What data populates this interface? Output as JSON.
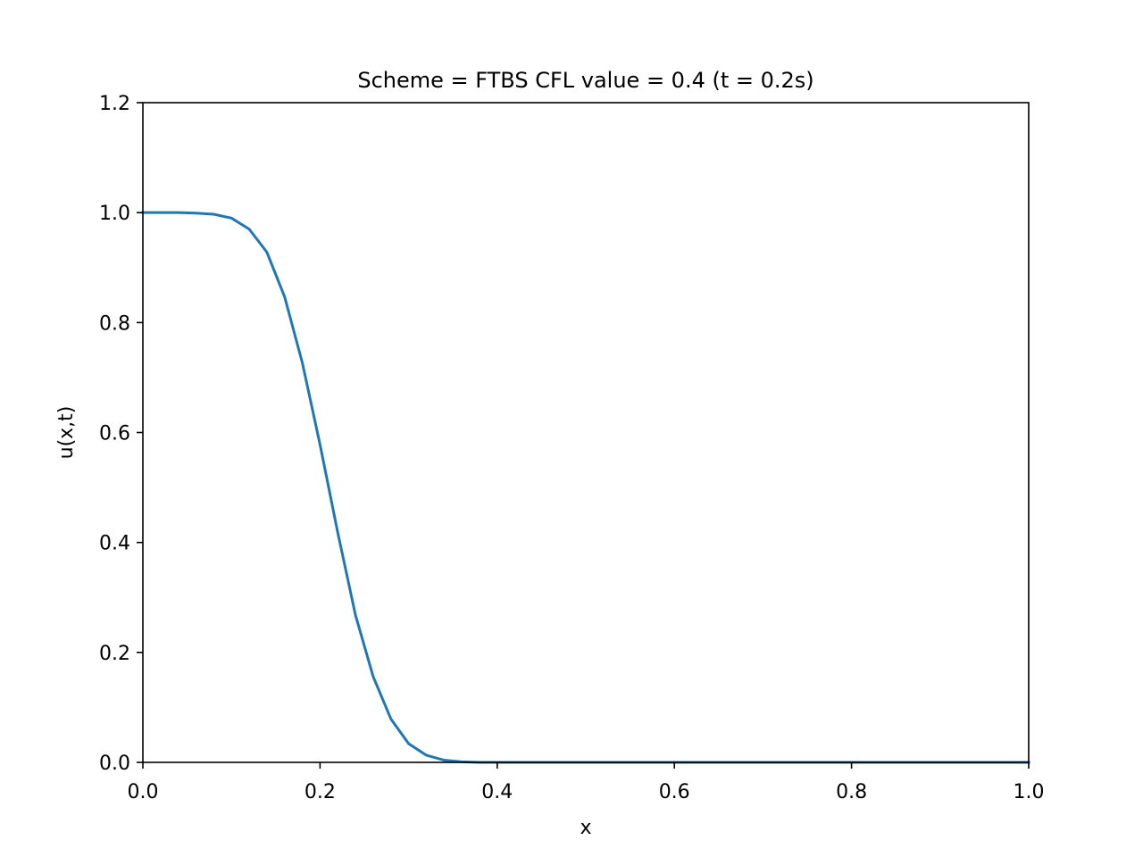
{
  "chart_data": {
    "type": "line",
    "title": "Scheme = FTBS CFL value = 0.4 (t = 0.2s)",
    "xlabel": "x",
    "ylabel": "u(x,t)",
    "xlim": [
      0.0,
      1.0
    ],
    "ylim": [
      0.0,
      1.2
    ],
    "xticks": [
      "0.0",
      "0.2",
      "0.4",
      "0.6",
      "0.8",
      "1.0"
    ],
    "yticks": [
      "0.0",
      "0.2",
      "0.4",
      "0.6",
      "0.8",
      "1.0",
      "1.2"
    ],
    "xtick_values": [
      0.0,
      0.2,
      0.4,
      0.6,
      0.8,
      1.0
    ],
    "ytick_values": [
      0.0,
      0.2,
      0.4,
      0.6,
      0.8,
      1.0,
      1.2
    ],
    "grid": false,
    "legend": "none",
    "series": [
      {
        "color": "#1f77b4",
        "x": [
          0.0,
          0.02,
          0.04,
          0.06,
          0.08,
          0.1,
          0.12,
          0.14,
          0.16,
          0.18,
          0.2,
          0.22,
          0.24,
          0.26,
          0.28,
          0.3,
          0.32,
          0.34,
          0.36,
          0.38,
          0.4,
          0.42,
          0.44,
          0.46,
          0.48,
          0.5,
          0.52,
          0.54,
          0.56,
          0.58,
          0.6,
          0.62,
          0.64,
          0.66,
          0.68,
          0.7,
          0.72,
          0.74,
          0.76,
          0.78,
          0.8,
          0.82,
          0.84,
          0.86,
          0.88,
          0.9,
          0.92,
          0.94,
          0.96,
          0.98,
          1.0
        ],
        "y": [
          1.0,
          1.0,
          1.0,
          0.999,
          0.997,
          0.99,
          0.97,
          0.928,
          0.847,
          0.727,
          0.578,
          0.418,
          0.268,
          0.156,
          0.079,
          0.034,
          0.013,
          0.004,
          0.001,
          0.0,
          0.0,
          0.0,
          0.0,
          0.0,
          0.0,
          0.0,
          0.0,
          0.0,
          0.0,
          0.0,
          0.0,
          0.0,
          0.0,
          0.0,
          0.0,
          0.0,
          0.0,
          0.0,
          0.0,
          0.0,
          0.0,
          0.0,
          0.0,
          0.0,
          0.0,
          0.0,
          0.0,
          0.0,
          0.0,
          0.0,
          0.0
        ]
      }
    ]
  }
}
